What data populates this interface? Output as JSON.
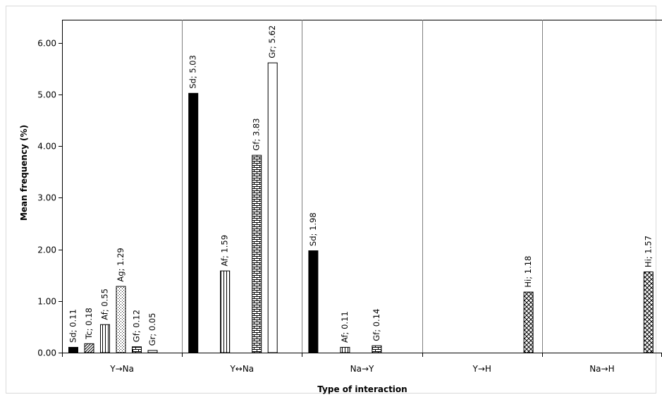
{
  "chart_data": {
    "type": "bar",
    "title": "",
    "xlabel": "Type of interaction",
    "ylabel": "Mean frequency (%)",
    "ylim": [
      0,
      6.5
    ],
    "yticks": [
      "0.00",
      "1.00",
      "2.00",
      "3.00",
      "4.00",
      "5.00",
      "6.00"
    ],
    "grid": false,
    "legend": "none",
    "categories": [
      "Y→Na",
      "Y↔Na",
      "Na→Y",
      "Y→H",
      "Na→H"
    ],
    "series": [
      {
        "name": "Sd",
        "pattern": "solid-black",
        "values": [
          0.11,
          5.03,
          1.98,
          null,
          null
        ]
      },
      {
        "name": "Tc",
        "pattern": "diagonal-lines",
        "values": [
          0.18,
          null,
          null,
          null,
          null
        ]
      },
      {
        "name": "Af",
        "pattern": "vertical-lines",
        "values": [
          0.55,
          1.59,
          0.11,
          null,
          null
        ]
      },
      {
        "name": "Ag",
        "pattern": "dots",
        "values": [
          1.29,
          null,
          null,
          null,
          null
        ]
      },
      {
        "name": "Gf",
        "pattern": "bricks",
        "values": [
          0.12,
          3.83,
          0.14,
          null,
          null
        ]
      },
      {
        "name": "Gr",
        "pattern": "white",
        "values": [
          0.05,
          5.62,
          null,
          null,
          null
        ]
      },
      {
        "name": "Hi",
        "pattern": "crosshatch",
        "values": [
          null,
          null,
          null,
          1.18,
          1.57
        ]
      }
    ],
    "data_labels": [
      "Sd; 0.11",
      "Tc; 0.18",
      "Af; 0.55",
      "Ag; 1.29",
      "Gf; 0.12",
      "Gr; 0.05",
      "Sd; 5.03",
      "Af; 1.59",
      "Gf; 3.83",
      "Gr; 5.62",
      "Sd; 1.98",
      "Af; 0.11",
      "Gf; 0.14",
      "Hi; 1.18",
      "Hi; 1.57"
    ]
  }
}
